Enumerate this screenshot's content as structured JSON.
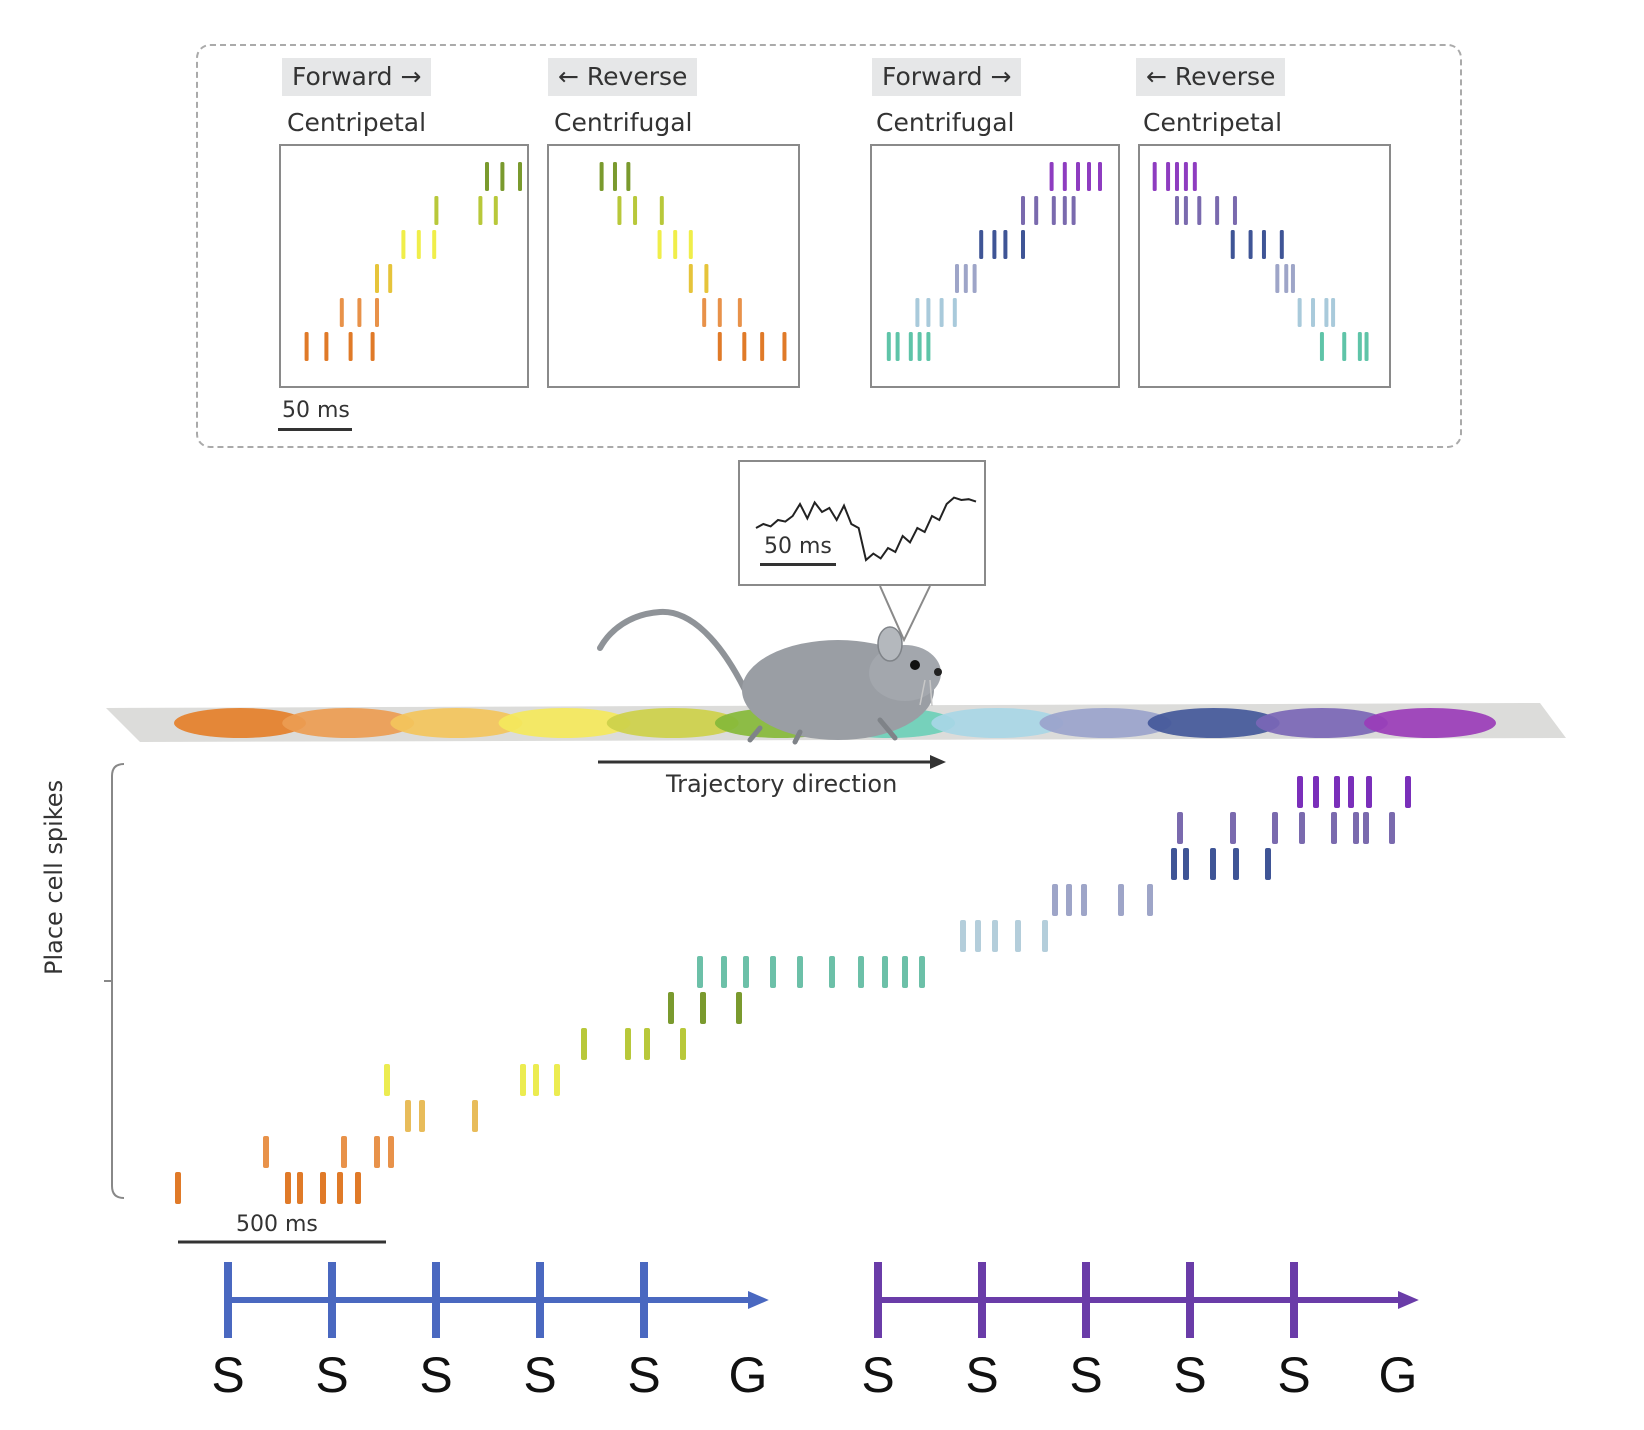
{
  "top_panels": {
    "scale_label": "50 ms",
    "panels": [
      {
        "direction": "Forward →",
        "type": "Centripetal",
        "palette": "warm",
        "rows": [
          {
            "color": "#e07a28",
            "ticks": [
              0.08,
              0.17,
              0.28,
              0.38
            ]
          },
          {
            "color": "#e8924a",
            "ticks": [
              0.24,
              0.32,
              0.4
            ]
          },
          {
            "color": "#e6c43a",
            "ticks": [
              0.4,
              0.46
            ]
          },
          {
            "color": "#f0ee4a",
            "ticks": [
              0.52,
              0.59,
              0.66
            ]
          },
          {
            "color": "#b8c83a",
            "ticks": [
              0.67,
              0.87,
              0.94
            ]
          },
          {
            "color": "#7a9a2e",
            "ticks": [
              0.9,
              0.97,
              1.05
            ]
          }
        ]
      },
      {
        "direction": "← Reverse",
        "type": "Centrifugal",
        "palette": "warm",
        "rows": [
          {
            "color": "#e07a28",
            "ticks": [
              0.73,
              0.84,
              0.92,
              1.02
            ]
          },
          {
            "color": "#e8924a",
            "ticks": [
              0.66,
              0.73,
              0.82
            ]
          },
          {
            "color": "#e6c43a",
            "ticks": [
              0.6,
              0.67
            ]
          },
          {
            "color": "#f0ee4a",
            "ticks": [
              0.46,
              0.53,
              0.6
            ]
          },
          {
            "color": "#b8c83a",
            "ticks": [
              0.28,
              0.35,
              0.47
            ]
          },
          {
            "color": "#7a9a2e",
            "ticks": [
              0.2,
              0.26,
              0.32
            ]
          }
        ]
      },
      {
        "direction": "Forward →",
        "type": "Centrifugal",
        "palette": "cool",
        "rows": [
          {
            "color": "#5fc4a8",
            "ticks": [
              0.04,
              0.08,
              0.14,
              0.18,
              0.22
            ]
          },
          {
            "color": "#a9cadb",
            "ticks": [
              0.17,
              0.22,
              0.28,
              0.34
            ]
          },
          {
            "color": "#9ea5c8",
            "ticks": [
              0.35,
              0.39,
              0.43
            ]
          },
          {
            "color": "#3f5596",
            "ticks": [
              0.46,
              0.52,
              0.57,
              0.65
            ]
          },
          {
            "color": "#7a6aae",
            "ticks": [
              0.65,
              0.71,
              0.79,
              0.84,
              0.88
            ]
          },
          {
            "color": "#8e3cc0",
            "ticks": [
              0.78,
              0.84,
              0.9,
              0.95,
              1.0
            ]
          }
        ]
      },
      {
        "direction": "← Reverse",
        "type": "Centripetal",
        "palette": "cool",
        "rows": [
          {
            "color": "#5fc4a8",
            "ticks": [
              0.78,
              0.88,
              0.95,
              0.98
            ]
          },
          {
            "color": "#a9cadb",
            "ticks": [
              0.68,
              0.74,
              0.8,
              0.83
            ]
          },
          {
            "color": "#9ea5c8",
            "ticks": [
              0.58,
              0.62,
              0.65
            ]
          },
          {
            "color": "#3f5596",
            "ticks": [
              0.38,
              0.46,
              0.52,
              0.6
            ]
          },
          {
            "color": "#7a6aae",
            "ticks": [
              0.13,
              0.17,
              0.23,
              0.31,
              0.39
            ]
          },
          {
            "color": "#8e3cc0",
            "ticks": [
              0.03,
              0.09,
              0.13,
              0.17,
              0.21
            ]
          }
        ]
      }
    ]
  },
  "lfp_inset": {
    "scale_label": "50 ms",
    "trace": [
      0.6,
      0.55,
      0.58,
      0.5,
      0.52,
      0.45,
      0.3,
      0.48,
      0.28,
      0.4,
      0.35,
      0.5,
      0.32,
      0.55,
      0.6,
      1.0,
      0.92,
      0.98,
      0.85,
      0.9,
      0.7,
      0.78,
      0.6,
      0.65,
      0.45,
      0.5,
      0.3,
      0.22,
      0.25,
      0.24,
      0.27
    ]
  },
  "track": {
    "trajectory_label": "Trajectory direction",
    "place_fields": [
      "#e47f2a",
      "#eb9c52",
      "#f3c45c",
      "#f4e85c",
      "#cdd04a",
      "#86b83a",
      "#6ccfb8",
      "#a8d6e6",
      "#9aa3cc",
      "#43589a",
      "#7a66b6",
      "#9a3cb8"
    ]
  },
  "raster": {
    "ylabel": "Place cell spikes",
    "scale_label": "500 ms",
    "rows": [
      {
        "color": "#e07a28",
        "ticks": [
          178,
          288,
          300,
          323,
          340,
          358
        ]
      },
      {
        "color": "#e8924a",
        "ticks": [
          266,
          344,
          377,
          391
        ]
      },
      {
        "color": "#e8bc5a",
        "ticks": [
          408,
          422,
          475
        ]
      },
      {
        "color": "#ecec50",
        "ticks": [
          387,
          523,
          536,
          557
        ]
      },
      {
        "color": "#b8c83a",
        "ticks": [
          584,
          628,
          647,
          683
        ]
      },
      {
        "color": "#7a9a2e",
        "ticks": [
          671,
          703,
          739
        ]
      },
      {
        "color": "#6cc0a8",
        "ticks": [
          700,
          724,
          746,
          773,
          800,
          832,
          861,
          885,
          905,
          922
        ]
      },
      {
        "color": "#b4cedb",
        "ticks": [
          963,
          978,
          995,
          1018,
          1045
        ]
      },
      {
        "color": "#9ea5c8",
        "ticks": [
          1055,
          1069,
          1084,
          1121,
          1150
        ]
      },
      {
        "color": "#3f5596",
        "ticks": [
          1174,
          1186,
          1213,
          1236,
          1268
        ]
      },
      {
        "color": "#7a6aae",
        "ticks": [
          1180,
          1233,
          1275,
          1302,
          1334,
          1356,
          1366,
          1392
        ]
      },
      {
        "color": "#7a2fba",
        "ticks": [
          1300,
          1316,
          1337,
          1351,
          1369,
          1408
        ]
      }
    ]
  },
  "sequences": [
    {
      "color": "#4a68c0",
      "letters": [
        "S",
        "S",
        "S",
        "S",
        "S",
        "G"
      ]
    },
    {
      "color": "#6a3ca8",
      "letters": [
        "S",
        "S",
        "S",
        "S",
        "S",
        "G"
      ]
    }
  ]
}
